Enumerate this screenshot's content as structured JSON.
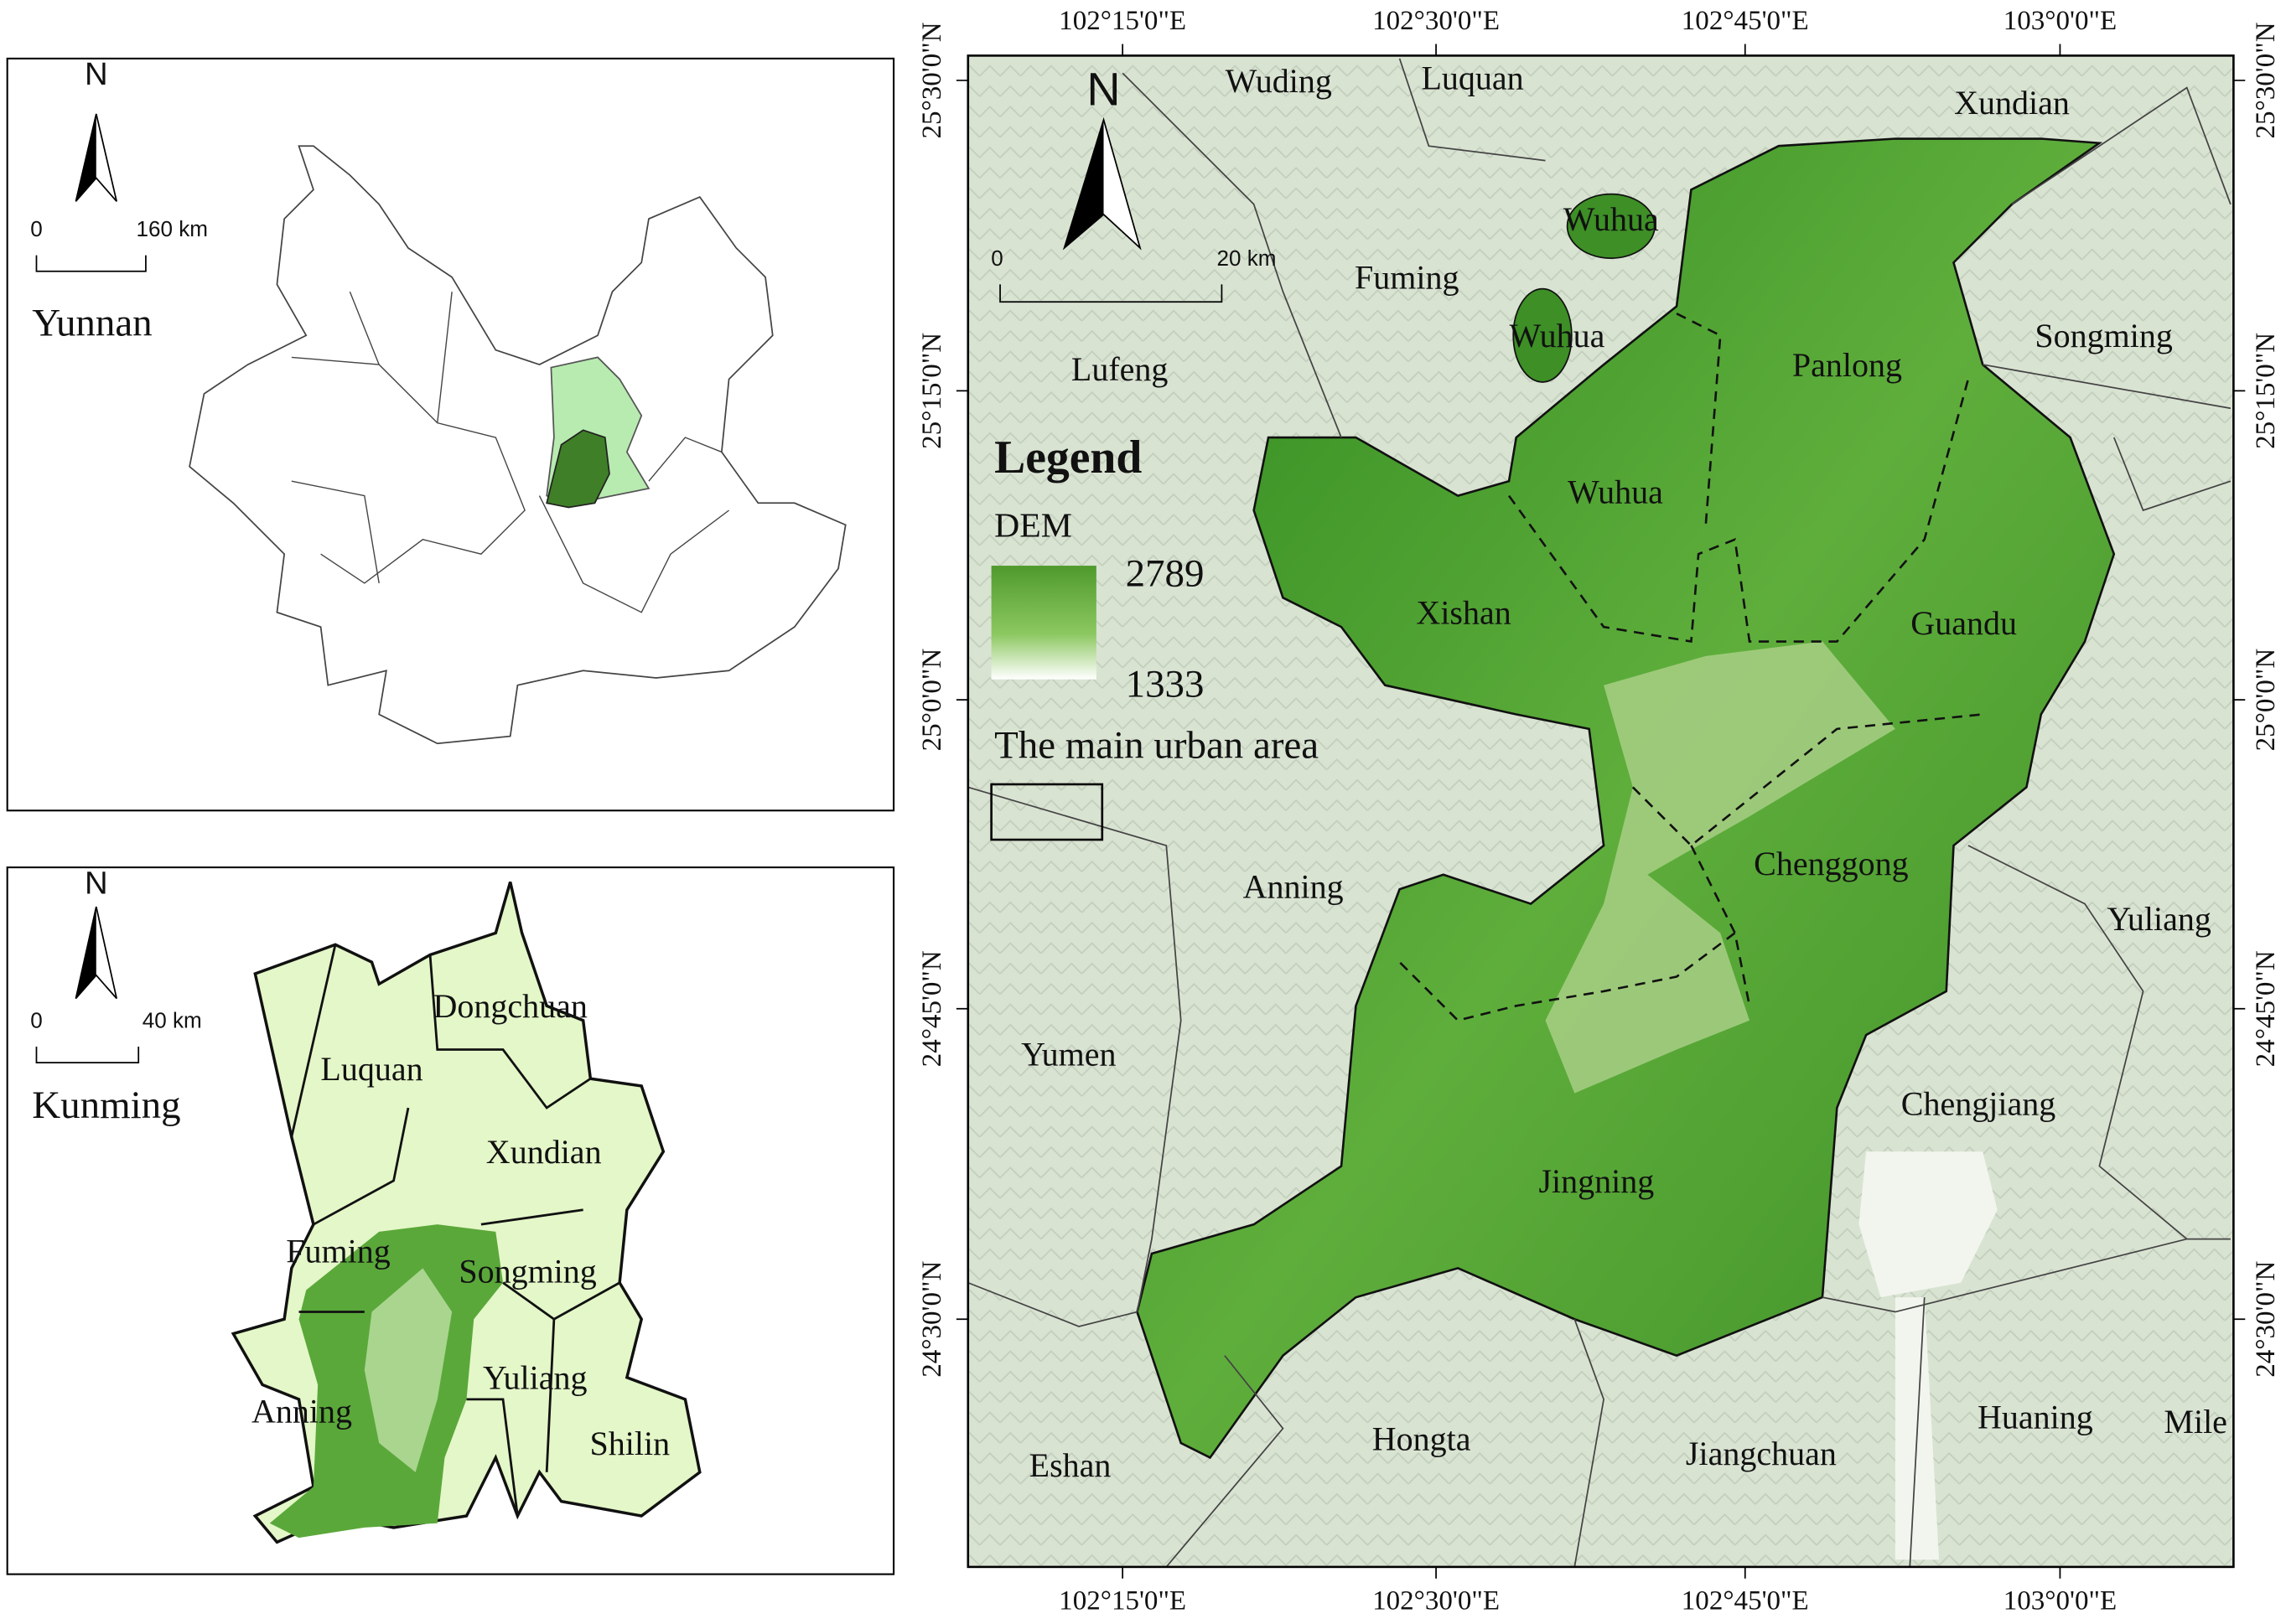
{
  "yunnan_inset": {
    "north": "N",
    "scale_start": "0",
    "scale_end": "160 km",
    "title": "Yunnan"
  },
  "kunming_inset": {
    "north": "N",
    "scale_start": "0",
    "scale_end": "40 km",
    "title": "Kunming",
    "labels": [
      "Dongchuan",
      "Luquan",
      "Xundian",
      "Fuming",
      "Songming",
      "Yuliang",
      "Anning",
      "Shilin"
    ]
  },
  "main_map": {
    "north": "N",
    "scale_start": "0",
    "scale_end": "20 km",
    "lon_labels": [
      "102°15'0\"E",
      "102°30'0\"E",
      "102°45'0\"E",
      "103°0'0\"E"
    ],
    "lat_labels": [
      "25°30'0\"N",
      "25°15'0\"N",
      "25°0'0\"N",
      "24°45'0\"N",
      "24°30'0\"N"
    ],
    "place_labels": [
      "Wuding",
      "Luquan",
      "Xundian",
      "Wuhua",
      "Fuming",
      "Wuhua",
      "Panlong",
      "Songming",
      "Lufeng",
      "Wuhua",
      "Xishan",
      "Guandu",
      "Chenggong",
      "Anning",
      "Yuliang",
      "Yumen",
      "Chengjiang",
      "Jingning",
      "Hongta",
      "Jiangchuan",
      "Huaning",
      "Mile",
      "Eshan"
    ],
    "legend": {
      "title": "Legend",
      "dem_label": "DEM",
      "dem_max": 2789,
      "dem_min": 1333,
      "urban_label": "The main urban area"
    }
  }
}
